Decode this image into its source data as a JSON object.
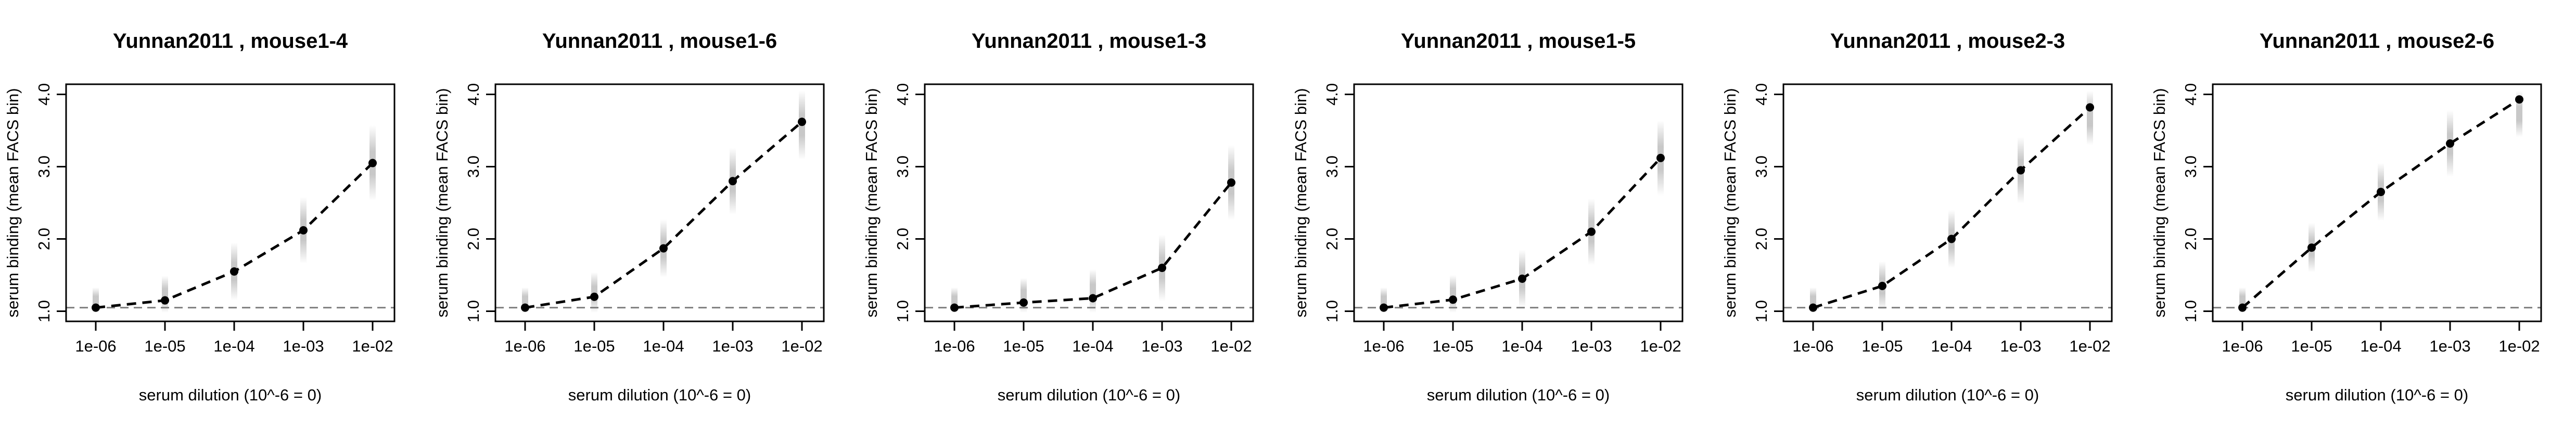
{
  "figure": {
    "background": "#ffffff",
    "point_color": "#000000",
    "line_color": "#000000",
    "baseline_color": "#808080",
    "cloud_color": "#9a9a9a"
  },
  "chart_data": [
    {
      "type": "line",
      "title": "Yunnan2011 , mouse1-4",
      "xlabel": "serum dilution (10^-6 = 0)",
      "ylabel": "serum binding (mean FACS bin)",
      "x_scale": "log10",
      "x": [
        1e-06,
        1e-05,
        0.0001,
        0.001,
        0.01
      ],
      "x_tick_labels": [
        "1e-06",
        "1e-05",
        "1e-04",
        "1e-03",
        "1e-02"
      ],
      "y_tick_labels": [
        "1.0",
        "2.0",
        "3.0",
        "4.0"
      ],
      "ylim": [
        1.0,
        4.0
      ],
      "baseline": 1.05,
      "series": [
        {
          "values": [
            1.05,
            1.15,
            1.55,
            2.12,
            3.05
          ]
        }
      ],
      "grid": false
    },
    {
      "type": "line",
      "title": "Yunnan2011 , mouse1-6",
      "xlabel": "serum dilution (10^-6 = 0)",
      "ylabel": "serum binding (mean FACS bin)",
      "x_scale": "log10",
      "x": [
        1e-06,
        1e-05,
        0.0001,
        0.001,
        0.01
      ],
      "x_tick_labels": [
        "1e-06",
        "1e-05",
        "1e-04",
        "1e-03",
        "1e-02"
      ],
      "y_tick_labels": [
        "1.0",
        "2.0",
        "3.0",
        "4.0"
      ],
      "ylim": [
        1.0,
        4.0
      ],
      "baseline": 1.05,
      "series": [
        {
          "values": [
            1.05,
            1.2,
            1.87,
            2.8,
            3.62
          ]
        }
      ],
      "grid": false
    },
    {
      "type": "line",
      "title": "Yunnan2011 , mouse1-3",
      "xlabel": "serum dilution (10^-6 = 0)",
      "ylabel": "serum binding (mean FACS bin)",
      "x_scale": "log10",
      "x": [
        1e-06,
        1e-05,
        0.0001,
        0.001,
        0.01
      ],
      "x_tick_labels": [
        "1e-06",
        "1e-05",
        "1e-04",
        "1e-03",
        "1e-02"
      ],
      "y_tick_labels": [
        "1.0",
        "2.0",
        "3.0",
        "4.0"
      ],
      "ylim": [
        1.0,
        4.0
      ],
      "baseline": 1.05,
      "series": [
        {
          "values": [
            1.05,
            1.12,
            1.18,
            1.6,
            2.78
          ]
        }
      ],
      "grid": false
    },
    {
      "type": "line",
      "title": "Yunnan2011 , mouse1-5",
      "xlabel": "serum dilution (10^-6 = 0)",
      "ylabel": "serum binding (mean FACS bin)",
      "x_scale": "log10",
      "x": [
        1e-06,
        1e-05,
        0.0001,
        0.001,
        0.01
      ],
      "x_tick_labels": [
        "1e-06",
        "1e-05",
        "1e-04",
        "1e-03",
        "1e-02"
      ],
      "y_tick_labels": [
        "1.0",
        "2.0",
        "3.0",
        "4.0"
      ],
      "ylim": [
        1.0,
        4.0
      ],
      "baseline": 1.05,
      "series": [
        {
          "values": [
            1.05,
            1.16,
            1.45,
            2.1,
            3.12
          ]
        }
      ],
      "grid": false
    },
    {
      "type": "line",
      "title": "Yunnan2011 , mouse2-3",
      "xlabel": "serum dilution (10^-6 = 0)",
      "ylabel": "serum binding (mean FACS bin)",
      "x_scale": "log10",
      "x": [
        1e-06,
        1e-05,
        0.0001,
        0.001,
        0.01
      ],
      "x_tick_labels": [
        "1e-06",
        "1e-05",
        "1e-04",
        "1e-03",
        "1e-02"
      ],
      "y_tick_labels": [
        "1.0",
        "2.0",
        "3.0",
        "4.0"
      ],
      "ylim": [
        1.0,
        4.0
      ],
      "baseline": 1.05,
      "series": [
        {
          "values": [
            1.05,
            1.35,
            2.0,
            2.95,
            3.82
          ]
        }
      ],
      "grid": false
    },
    {
      "type": "line",
      "title": "Yunnan2011 , mouse2-6",
      "xlabel": "serum dilution (10^-6 = 0)",
      "ylabel": "serum binding (mean FACS bin)",
      "x_scale": "log10",
      "x": [
        1e-06,
        1e-05,
        0.0001,
        0.001,
        0.01
      ],
      "x_tick_labels": [
        "1e-06",
        "1e-05",
        "1e-04",
        "1e-03",
        "1e-02"
      ],
      "y_tick_labels": [
        "1.0",
        "2.0",
        "3.0",
        "4.0"
      ],
      "ylim": [
        1.0,
        4.0
      ],
      "baseline": 1.05,
      "series": [
        {
          "values": [
            1.05,
            1.88,
            2.65,
            3.32,
            3.93
          ]
        }
      ],
      "grid": false
    }
  ]
}
